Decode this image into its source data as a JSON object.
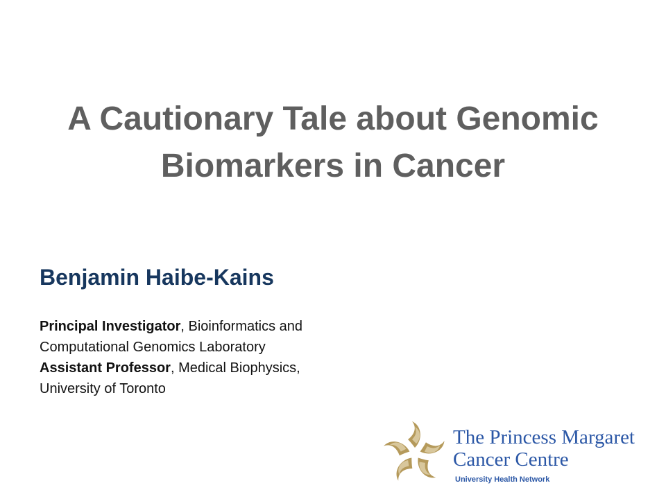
{
  "slide": {
    "title_line1": "A Cautionary Tale about Genomic",
    "title_line2": "Biomarkers in Cancer",
    "author": "Benjamin Haibe-Kains",
    "affiliations": {
      "role1_bold": "Principal Investigator",
      "role1_rest": ", Bioinformatics and",
      "role1_line2": "Computational Genomics Laboratory",
      "role2_bold": "Assistant Professor",
      "role2_rest": ", Medical Biophysics,",
      "role2_line2": "University of Toronto"
    }
  },
  "logo": {
    "line1": "The Princess Margaret",
    "line2": "Cancer Centre",
    "sub": "University Health Network",
    "mark_color": "#b59a5b",
    "text_color": "#2b57a6"
  },
  "colors": {
    "title": "#5f5f5f",
    "author": "#17375e",
    "body_text": "#111111"
  }
}
